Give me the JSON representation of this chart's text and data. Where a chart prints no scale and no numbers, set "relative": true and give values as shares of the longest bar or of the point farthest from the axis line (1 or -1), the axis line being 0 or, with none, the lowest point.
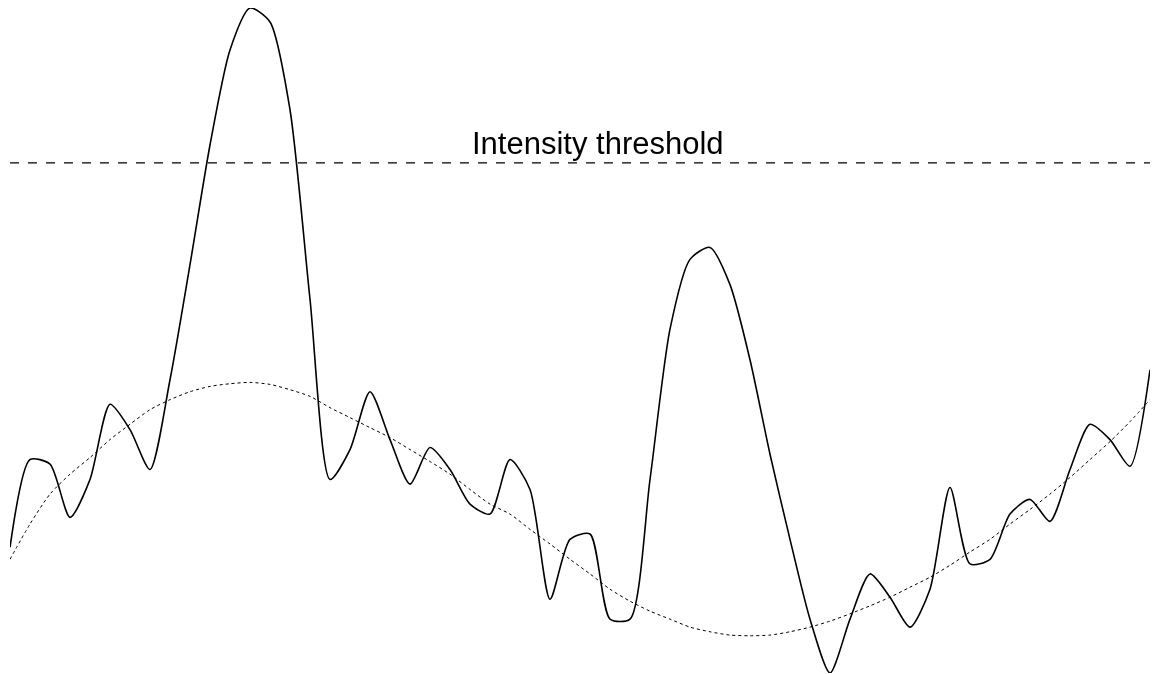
{
  "chart_data": {
    "type": "line",
    "relative": true,
    "categories": [
      null,
      null,
      null,
      null,
      null,
      null,
      null,
      null,
      null,
      null,
      null,
      null,
      null,
      null,
      null,
      null,
      null,
      null,
      null,
      null,
      null,
      null,
      null,
      null,
      null,
      null,
      null,
      null,
      null,
      null,
      null,
      null,
      null,
      null,
      null,
      null,
      null,
      null,
      null,
      null,
      null,
      null,
      null,
      null,
      null,
      null,
      null,
      null,
      null,
      null,
      null,
      null,
      null,
      null,
      null,
      null,
      null,
      null
    ],
    "series": [
      {
        "color": "#000000",
        "line_style": "solid",
        "values": [
          0.189,
          0.321,
          0.314,
          0.234,
          0.291,
          0.404,
          0.366,
          0.306,
          0.441,
          0.614,
          0.794,
          0.937,
          1.0,
          0.979,
          0.847,
          0.562,
          0.291,
          0.336,
          0.423,
          0.351,
          0.284,
          0.339,
          0.306,
          0.254,
          0.239,
          0.321,
          0.276,
          0.111,
          0.201,
          0.209,
          0.081,
          0.081,
          0.291,
          0.517,
          0.622,
          0.64,
          0.584,
          0.471,
          0.329,
          0.201,
          0.081,
          0.0,
          0.081,
          0.149,
          0.114,
          0.069,
          0.126,
          0.279,
          0.164,
          0.171,
          0.239,
          0.261,
          0.228,
          0.306,
          0.374,
          0.351,
          0.311,
          0.456
        ]
      },
      {
        "color": "#000000",
        "line_style": "dotted",
        "values": [
          0.171,
          0.224,
          0.269,
          0.299,
          0.324,
          0.351,
          0.374,
          0.396,
          0.411,
          0.423,
          0.431,
          0.435,
          0.437,
          0.434,
          0.426,
          0.416,
          0.399,
          0.384,
          0.369,
          0.354,
          0.336,
          0.318,
          0.299,
          0.276,
          0.254,
          0.239,
          0.216,
          0.194,
          0.171,
          0.149,
          0.126,
          0.108,
          0.093,
          0.081,
          0.069,
          0.062,
          0.057,
          0.056,
          0.057,
          0.062,
          0.069,
          0.078,
          0.089,
          0.101,
          0.114,
          0.129,
          0.144,
          0.162,
          0.182,
          0.201,
          0.224,
          0.246,
          0.269,
          0.294,
          0.321,
          0.348,
          0.378,
          0.411
        ]
      }
    ],
    "ref_lines": [
      {
        "axis": "y",
        "value": 0.767,
        "label": "Intensity threshold",
        "color": "#000000",
        "line_style": "dashed"
      }
    ]
  }
}
